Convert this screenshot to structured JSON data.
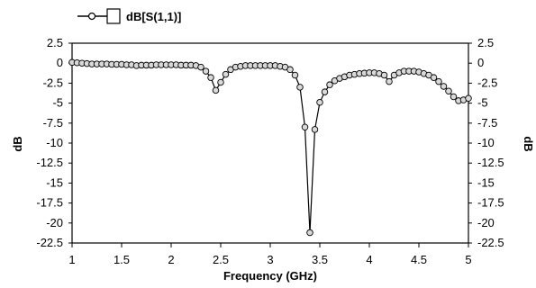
{
  "chart_data": {
    "type": "line",
    "title": "",
    "xlabel": "Frequency (GHz)",
    "ylabel_left": "dB",
    "ylabel_right": "dB",
    "xlim": [
      1,
      5
    ],
    "ylim": [
      -22.5,
      2.5
    ],
    "xticks": [
      1,
      1.5,
      2,
      2.5,
      3,
      3.5,
      4,
      4.5,
      5
    ],
    "xtick_labels": [
      "1",
      "1.5",
      "2",
      "2.5",
      "3",
      "3.5",
      "4",
      "4.5",
      "5"
    ],
    "yticks": [
      2.5,
      0,
      -2.5,
      -5,
      -7.5,
      -10,
      -12.5,
      -15,
      -17.5,
      -20,
      -22.5
    ],
    "ytick_labels_left": [
      "2.5",
      "0",
      "-2.5",
      "-5",
      "-7.5",
      "-10",
      "-12.5",
      "-15",
      "-17.5",
      "-20",
      "-22.5"
    ],
    "ytick_labels_right": [
      "2.5",
      "0",
      "-2.5",
      "-5",
      "-7.5",
      "-10",
      "-12.5",
      "-15",
      "-17.5",
      "-20",
      "-22.5"
    ],
    "grid": false,
    "legend": {
      "placement": "top-left",
      "label": "dB[S(1,1)]"
    },
    "series": [
      {
        "name": "dB[S(1,1)]",
        "color": "#000000",
        "marker_color": "#d9d9d9",
        "x": [
          1.0,
          1.05,
          1.1,
          1.15,
          1.2,
          1.25,
          1.3,
          1.35,
          1.4,
          1.45,
          1.5,
          1.55,
          1.6,
          1.65,
          1.7,
          1.75,
          1.8,
          1.85,
          1.9,
          1.95,
          2.0,
          2.05,
          2.1,
          2.15,
          2.2,
          2.25,
          2.3,
          2.35,
          2.4,
          2.45,
          2.5,
          2.55,
          2.6,
          2.65,
          2.7,
          2.75,
          2.8,
          2.85,
          2.9,
          2.95,
          3.0,
          3.05,
          3.1,
          3.15,
          3.2,
          3.25,
          3.3,
          3.35,
          3.4,
          3.45,
          3.5,
          3.55,
          3.6,
          3.65,
          3.7,
          3.75,
          3.8,
          3.85,
          3.9,
          3.95,
          4.0,
          4.05,
          4.1,
          4.15,
          4.2,
          4.25,
          4.3,
          4.35,
          4.4,
          4.45,
          4.5,
          4.55,
          4.6,
          4.65,
          4.7,
          4.75,
          4.8,
          4.85,
          4.9,
          4.95,
          5.0
        ],
        "y": [
          0.1,
          0.05,
          0.0,
          -0.05,
          -0.1,
          -0.1,
          -0.1,
          -0.1,
          -0.15,
          -0.15,
          -0.15,
          -0.2,
          -0.2,
          -0.3,
          -0.25,
          -0.25,
          -0.25,
          -0.2,
          -0.2,
          -0.2,
          -0.2,
          -0.2,
          -0.25,
          -0.25,
          -0.25,
          -0.3,
          -0.5,
          -1.0,
          -1.8,
          -3.4,
          -2.4,
          -1.4,
          -0.8,
          -0.5,
          -0.4,
          -0.3,
          -0.3,
          -0.3,
          -0.3,
          -0.3,
          -0.3,
          -0.3,
          -0.4,
          -0.5,
          -0.8,
          -1.5,
          -3.0,
          -8.0,
          -21.2,
          -8.3,
          -4.9,
          -3.6,
          -2.7,
          -2.2,
          -1.9,
          -1.7,
          -1.5,
          -1.4,
          -1.3,
          -1.25,
          -1.2,
          -1.2,
          -1.3,
          -1.5,
          -2.3,
          -1.5,
          -1.2,
          -1.0,
          -1.0,
          -1.0,
          -1.1,
          -1.3,
          -1.5,
          -1.8,
          -2.3,
          -2.9,
          -3.5,
          -4.2,
          -4.7,
          -4.6,
          -4.4
        ]
      }
    ]
  }
}
